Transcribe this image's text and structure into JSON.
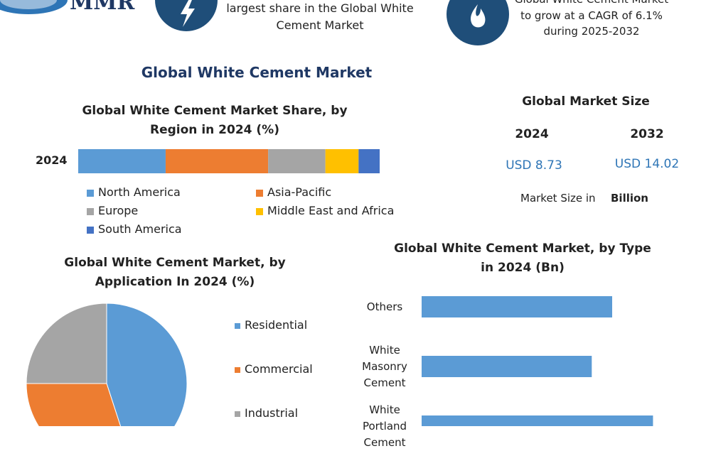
{
  "header": {
    "logo": "MMR",
    "left_text": [
      "largest share in the Global White",
      "Cement Market"
    ],
    "right_text": [
      "Global White Cement Market",
      "to grow at a CAGR of 6.1%",
      "during 2025-2032"
    ]
  },
  "title": "Global White Cement Market",
  "market_size": {
    "title": "Global Market Size",
    "years": [
      "2024",
      "2032"
    ],
    "values": [
      "USD 8.73",
      "USD 14.02"
    ],
    "note": "Market Size in",
    "note_unit": "Billion"
  },
  "chart_data": [
    {
      "type": "stacked_bar",
      "title": [
        "Global White Cement Market Share, by",
        "Region in 2024 (%)"
      ],
      "categories": [
        "2024"
      ],
      "xlim": [
        0,
        100
      ],
      "series": [
        {
          "name": "North America",
          "color": "#5b9bd5",
          "values": [
            29
          ]
        },
        {
          "name": "Asia-Pacific",
          "color": "#ed7d31",
          "values": [
            34
          ]
        },
        {
          "name": "Europe",
          "color": "#a5a5a5",
          "values": [
            19
          ]
        },
        {
          "name": "Middle East and Africa",
          "color": "#ffc000",
          "values": [
            11
          ]
        },
        {
          "name": "South America",
          "color": "#4472c4",
          "values": [
            7
          ]
        }
      ]
    },
    {
      "type": "pie",
      "title": [
        "Global White Cement Market, by",
        "Application In 2024 (%)"
      ],
      "categories": [
        "Residential",
        "Commercial",
        "Industrial"
      ],
      "values": [
        45,
        30,
        25
      ],
      "colors": [
        "#5b9bd5",
        "#ed7d31",
        "#a5a5a5"
      ]
    },
    {
      "type": "bar",
      "title": [
        "Global White Cement Market, by Type",
        "in 2024 (Bn)"
      ],
      "categories": [
        "Others",
        "White Masonry Cement",
        "White Portland Cement"
      ],
      "values": [
        2.8,
        2.5,
        3.4
      ],
      "color": "#5b9bd5",
      "xlim": [
        0,
        4.2
      ]
    }
  ]
}
